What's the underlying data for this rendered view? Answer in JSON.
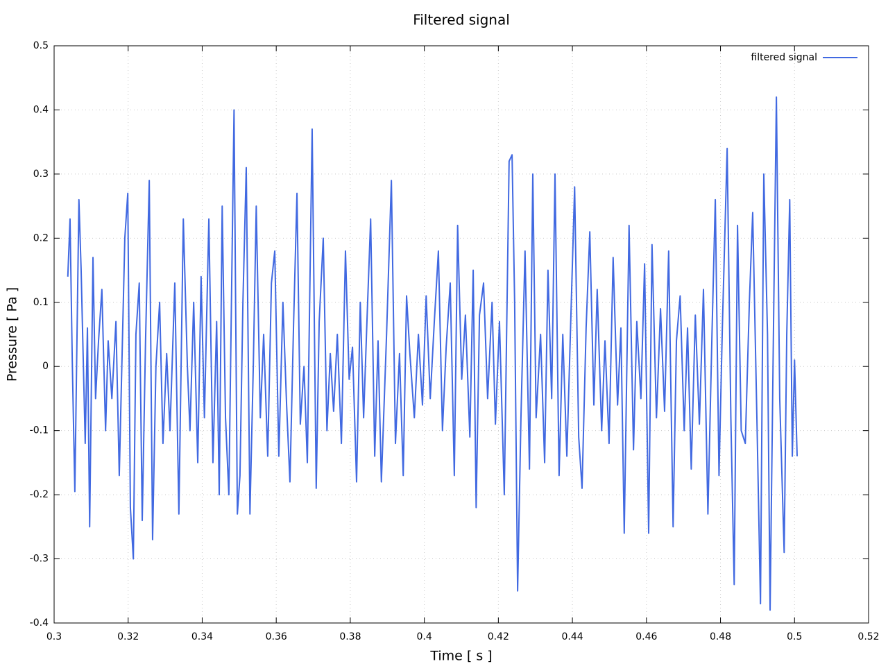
{
  "chart_data": {
    "type": "line",
    "title": "Filtered signal",
    "x_label": "Time [ s ]",
    "y_label": "Pressure [ Pa ]",
    "xlim": [
      0.3,
      0.52
    ],
    "xticks": [
      0.3,
      0.32,
      0.34,
      0.36,
      0.38,
      0.4,
      0.42,
      0.44,
      0.46,
      0.48,
      0.5,
      0.52
    ],
    "ylim": [
      -0.4,
      0.5
    ],
    "yticks": [
      -0.4,
      -0.3,
      -0.2,
      -0.1,
      0,
      0.1,
      0.2,
      0.3,
      0.4,
      0.5
    ],
    "grid": true,
    "legend": "top-right",
    "x": [
      0.3037,
      0.3043,
      0.3049,
      0.3056,
      0.3067,
      0.3073,
      0.3084,
      0.309,
      0.3096,
      0.3105,
      0.3112,
      0.312,
      0.3129,
      0.3139,
      0.3146,
      0.3156,
      0.3167,
      0.3176,
      0.3191,
      0.3199,
      0.3206,
      0.3214,
      0.3221,
      0.323,
      0.3238,
      0.3247,
      0.3257,
      0.3266,
      0.3275,
      0.3285,
      0.3294,
      0.3304,
      0.3313,
      0.3326,
      0.3337,
      0.3349,
      0.336,
      0.3367,
      0.3377,
      0.3388,
      0.3397,
      0.3406,
      0.3418,
      0.3429,
      0.3439,
      0.3446,
      0.3454,
      0.3463,
      0.3472,
      0.3486,
      0.3495,
      0.3502,
      0.351,
      0.3519,
      0.3529,
      0.3538,
      0.3546,
      0.3557,
      0.3566,
      0.3577,
      0.3587,
      0.3596,
      0.3607,
      0.3618,
      0.3628,
      0.3637,
      0.3647,
      0.3656,
      0.3665,
      0.3675,
      0.3684,
      0.3697,
      0.3708,
      0.3716,
      0.3727,
      0.3737,
      0.3746,
      0.3755,
      0.3765,
      0.3776,
      0.3787,
      0.3797,
      0.3806,
      0.3817,
      0.3827,
      0.3836,
      0.3845,
      0.3855,
      0.3866,
      0.3875,
      0.3884,
      0.3898,
      0.3911,
      0.3922,
      0.3933,
      0.3943,
      0.3952,
      0.3961,
      0.3973,
      0.3984,
      0.3995,
      0.4005,
      0.4016,
      0.4027,
      0.4038,
      0.4049,
      0.4059,
      0.407,
      0.4081,
      0.409,
      0.4101,
      0.4111,
      0.4123,
      0.4132,
      0.414,
      0.4149,
      0.416,
      0.4171,
      0.4183,
      0.4192,
      0.4203,
      0.4216,
      0.4229,
      0.4237,
      0.4244,
      0.4252,
      0.4261,
      0.4272,
      0.4284,
      0.4293,
      0.4302,
      0.4314,
      0.4325,
      0.4334,
      0.4344,
      0.4353,
      0.4364,
      0.4374,
      0.4385,
      0.4395,
      0.4406,
      0.4417,
      0.4426,
      0.4437,
      0.4447,
      0.4458,
      0.4467,
      0.4479,
      0.4488,
      0.4499,
      0.451,
      0.4522,
      0.4531,
      0.454,
      0.4553,
      0.4565,
      0.4574,
      0.4585,
      0.4595,
      0.4606,
      0.4615,
      0.4627,
      0.4638,
      0.4649,
      0.466,
      0.4672,
      0.4681,
      0.4691,
      0.4702,
      0.4711,
      0.4721,
      0.4732,
      0.4743,
      0.4754,
      0.4766,
      0.4777,
      0.4786,
      0.4796,
      0.4805,
      0.4818,
      0.4828,
      0.4837,
      0.4846,
      0.4856,
      0.4867,
      0.4878,
      0.4887,
      0.4899,
      0.4908,
      0.4917,
      0.4927,
      0.4934,
      0.4944,
      0.4951,
      0.496,
      0.4972,
      0.4979,
      0.4987,
      0.4994,
      0.5,
      0.5007
    ],
    "series": [
      {
        "name": "filtered signal",
        "color": "#4169e1",
        "values": [
          0.14,
          0.23,
          0.01,
          -0.195,
          0.26,
          0.15,
          -0.12,
          0.06,
          -0.25,
          0.17,
          -0.05,
          0.04,
          0.12,
          -0.1,
          0.04,
          -0.05,
          0.07,
          -0.17,
          0.2,
          0.27,
          -0.22,
          -0.3,
          0.05,
          0.13,
          -0.24,
          0.04,
          0.29,
          -0.27,
          0.0,
          0.1,
          -0.12,
          0.02,
          -0.1,
          0.13,
          -0.23,
          0.23,
          0.0,
          -0.1,
          0.1,
          -0.15,
          0.14,
          -0.08,
          0.23,
          -0.15,
          0.07,
          -0.2,
          0.25,
          -0.08,
          -0.2,
          0.4,
          -0.23,
          -0.17,
          0.1,
          0.31,
          -0.23,
          0.0,
          0.25,
          -0.08,
          0.05,
          -0.14,
          0.13,
          0.18,
          -0.14,
          0.1,
          -0.06,
          -0.18,
          0.07,
          0.27,
          -0.09,
          0.0,
          -0.15,
          0.37,
          -0.19,
          0.07,
          0.2,
          -0.1,
          0.02,
          -0.07,
          0.05,
          -0.12,
          0.18,
          -0.02,
          0.03,
          -0.18,
          0.1,
          -0.08,
          0.07,
          0.23,
          -0.14,
          0.04,
          -0.18,
          0.05,
          0.29,
          -0.12,
          0.02,
          -0.17,
          0.11,
          0.02,
          -0.08,
          0.05,
          -0.06,
          0.11,
          -0.05,
          0.07,
          0.18,
          -0.1,
          0.03,
          0.13,
          -0.17,
          0.22,
          -0.02,
          0.08,
          -0.11,
          0.15,
          -0.22,
          0.08,
          0.13,
          -0.05,
          0.1,
          -0.09,
          0.07,
          -0.2,
          0.32,
          0.33,
          0.1,
          -0.35,
          -0.08,
          0.18,
          -0.16,
          0.3,
          -0.08,
          0.05,
          -0.15,
          0.15,
          -0.05,
          0.3,
          -0.17,
          0.05,
          -0.14,
          0.06,
          0.28,
          -0.11,
          -0.19,
          0.06,
          0.21,
          -0.06,
          0.12,
          -0.1,
          0.04,
          -0.12,
          0.17,
          -0.06,
          0.06,
          -0.26,
          0.22,
          -0.13,
          0.07,
          -0.05,
          0.16,
          -0.26,
          0.19,
          -0.08,
          0.09,
          -0.07,
          0.18,
          -0.25,
          0.04,
          0.11,
          -0.1,
          0.06,
          -0.16,
          0.08,
          -0.09,
          0.12,
          -0.23,
          0.05,
          0.26,
          -0.17,
          0.06,
          0.34,
          -0.08,
          -0.34,
          0.22,
          -0.1,
          -0.12,
          0.1,
          0.24,
          -0.1,
          -0.37,
          0.3,
          0.05,
          -0.38,
          0.1,
          0.42,
          -0.05,
          -0.29,
          0.05,
          0.26,
          -0.14,
          0.01,
          -0.14
        ]
      }
    ]
  }
}
